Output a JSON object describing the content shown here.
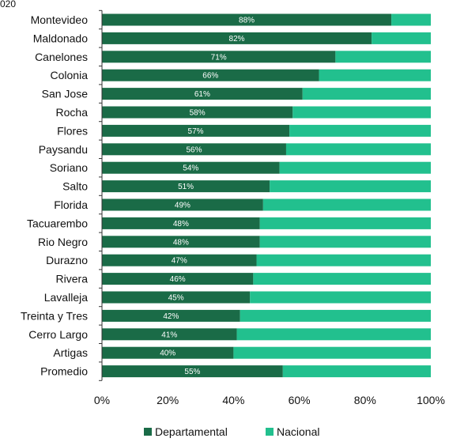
{
  "title_fragment": "020",
  "chart_data": {
    "type": "bar",
    "orientation": "horizontal",
    "stacked": "percent",
    "categories": [
      "Montevideo",
      "Maldonado",
      "Canelones",
      "Colonia",
      "San Jose",
      "Rocha",
      "Flores",
      "Paysandu",
      "Soriano",
      "Salto",
      "Florida",
      "Tacuarembo",
      "Rio Negro",
      "Durazno",
      "Rivera",
      "Lavalleja",
      "Treinta y Tres",
      "Cerro Largo",
      "Artigas",
      "Promedio"
    ],
    "series": [
      {
        "name": "Departamental",
        "color": "#1a6b47",
        "values": [
          88,
          82,
          71,
          66,
          61,
          58,
          57,
          56,
          54,
          51,
          49,
          48,
          48,
          47,
          46,
          45,
          42,
          41,
          40,
          55
        ]
      },
      {
        "name": "Nacional",
        "color": "#22c08e",
        "values": [
          12,
          18,
          29,
          34,
          39,
          42,
          43,
          44,
          46,
          49,
          51,
          52,
          52,
          53,
          54,
          55,
          58,
          59,
          60,
          45
        ]
      }
    ],
    "data_labels": [
      "88%",
      "82%",
      "71%",
      "66%",
      "61%",
      "58%",
      "57%",
      "56%",
      "54%",
      "51%",
      "49%",
      "48%",
      "48%",
      "47%",
      "46%",
      "45%",
      "42%",
      "41%",
      "40%",
      "55%"
    ],
    "xticks": [
      "0%",
      "20%",
      "40%",
      "60%",
      "80%",
      "100%"
    ],
    "xlim": [
      0,
      100
    ],
    "legend_position": "bottom",
    "grid": false
  }
}
